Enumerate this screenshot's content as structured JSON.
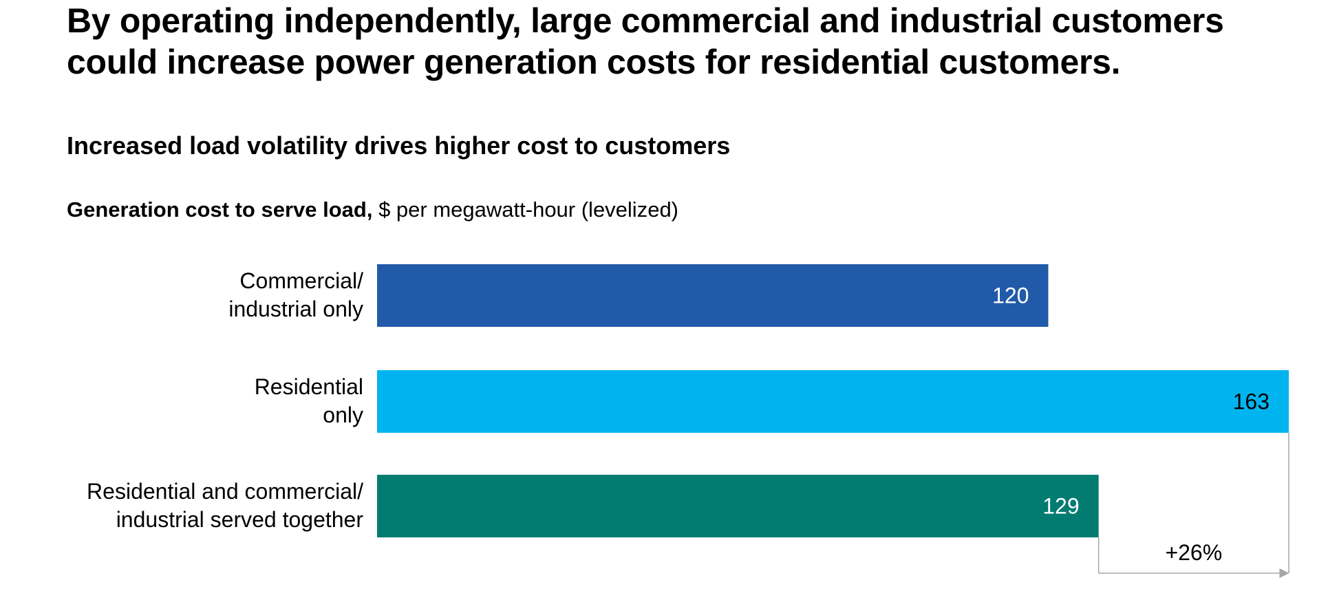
{
  "headline": "By operating independently, large commercial and industrial customers could increase power generation costs for residential customers.",
  "subtitle": "Increased load volatility drives higher cost to customers",
  "metric": {
    "bold": "Generation cost to serve load,",
    "unit": " $ per megawatt-hour (levelized)"
  },
  "colors": {
    "bar_commercial": "#215AA8",
    "bar_residential": "#00B5EF",
    "bar_together": "#027B71",
    "bracket": "#A6A6A6"
  },
  "chart_data": {
    "type": "bar",
    "orientation": "horizontal",
    "title": "Increased load volatility drives higher cost to customers",
    "xlabel": "Generation cost to serve load, $ per megawatt-hour (levelized)",
    "ylabel": "",
    "xlim": [
      0,
      163
    ],
    "categories": [
      [
        "Commercial/",
        "industrial only"
      ],
      [
        "Residential",
        "only"
      ],
      [
        "Residential and commercial/",
        "industrial served together"
      ]
    ],
    "values": [
      120,
      163,
      129
    ],
    "value_labels": [
      "120",
      "163",
      "129"
    ],
    "annotation": {
      "text": "+26%",
      "from_category_index": 2,
      "to_category_index": 1
    }
  }
}
